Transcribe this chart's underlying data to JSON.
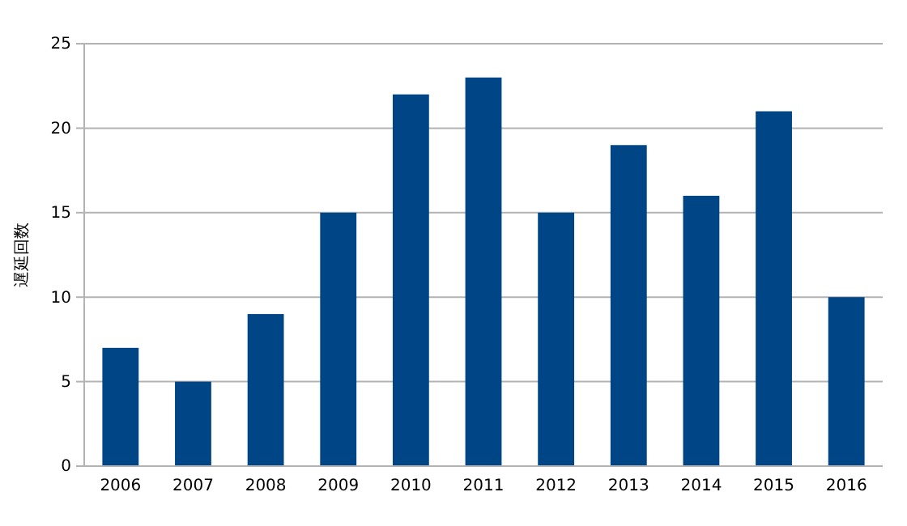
{
  "chart_data": {
    "type": "bar",
    "ylabel": "遅延回数",
    "categories": [
      "2006",
      "2007",
      "2008",
      "2009",
      "2010",
      "2011",
      "2012",
      "2013",
      "2014",
      "2015",
      "2016"
    ],
    "values": [
      7,
      5,
      9,
      15,
      22,
      23,
      15,
      19,
      16,
      21,
      10
    ],
    "color": "#004586",
    "ylim": [
      0,
      25
    ],
    "yticks": [
      0,
      5,
      10,
      15,
      20,
      25
    ],
    "grid": "y"
  }
}
